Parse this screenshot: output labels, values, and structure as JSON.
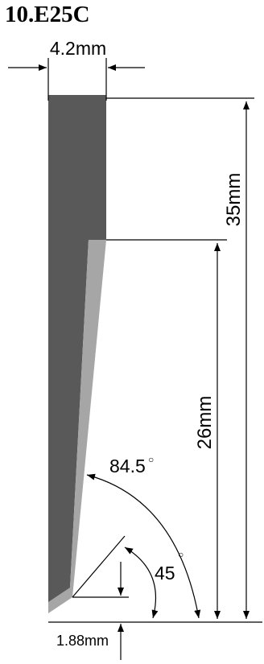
{
  "title": "10.E25C",
  "dimensions": {
    "width": "4.2mm",
    "total_length": "35mm",
    "edge_length": "26mm",
    "bevel_angle": "84.5",
    "tip_angle": "45",
    "tip_offset": "1.88mm",
    "degree_symbol": "○"
  },
  "colors": {
    "blade_body": "#595959",
    "blade_edge": "#a6a6a6",
    "line": "#000000"
  }
}
